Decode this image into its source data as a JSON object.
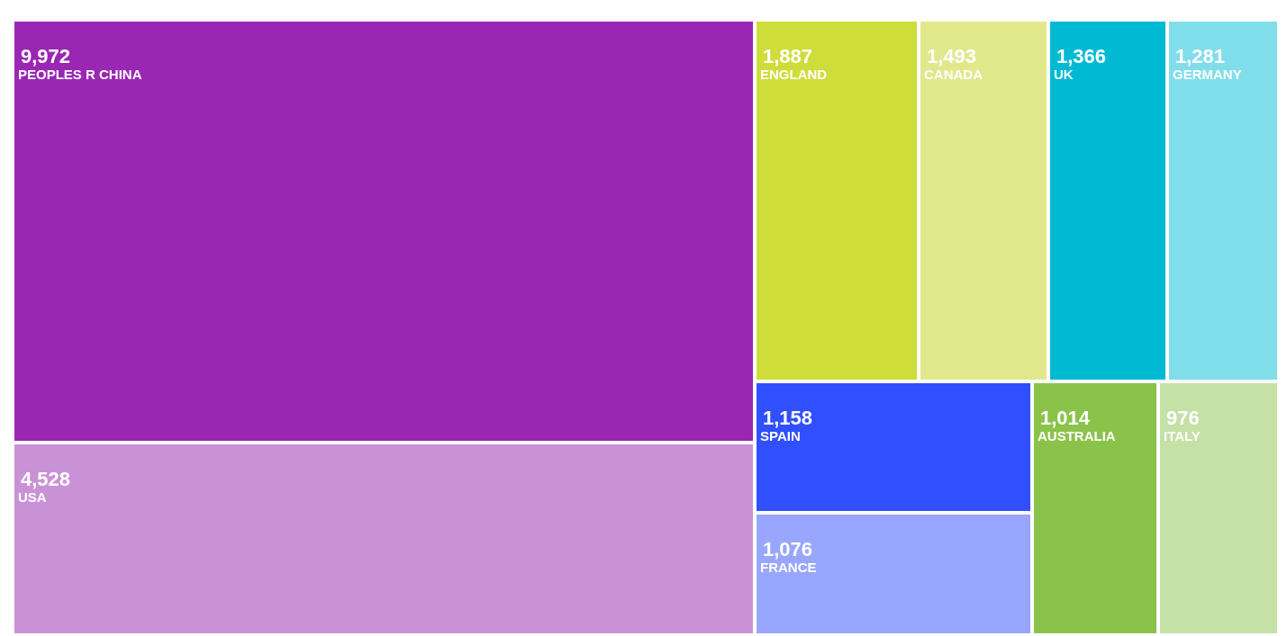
{
  "chart_data": {
    "type": "other",
    "categories": [
      "PEOPLES R CHINA",
      "USA",
      "ENGLAND",
      "CANADA",
      "UK",
      "GERMANY",
      "SPAIN",
      "FRANCE",
      "AUSTRALIA",
      "ITALY"
    ],
    "values": [
      9972,
      4528,
      1887,
      1493,
      1366,
      1281,
      1158,
      1076,
      1014,
      976
    ],
    "colors": [
      "#9a27b3",
      "#ca92d6",
      "#cfdd3a",
      "#e1e88c",
      "#00bad3",
      "#80deea",
      "#304ffe",
      "#98a6fe",
      "#8bc34a",
      "#c5e1a5"
    ],
    "value_labels": [
      "9,972",
      "4,528",
      "1,887",
      "1,493",
      "1,366",
      "1,281",
      "1,158",
      "1,076",
      "1,014",
      "976"
    ]
  }
}
